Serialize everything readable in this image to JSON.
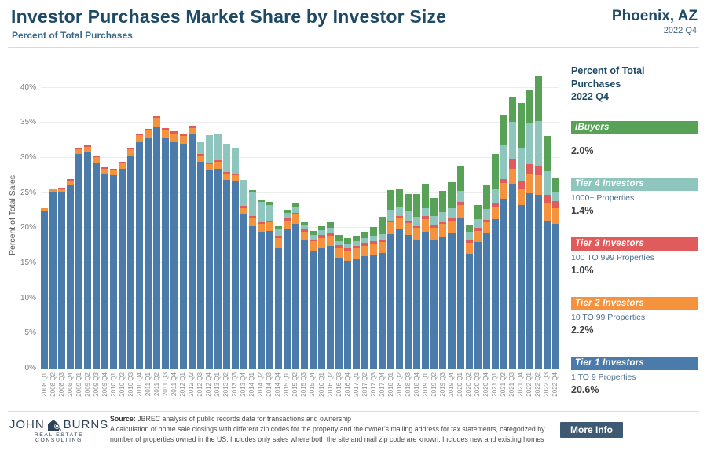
{
  "header": {
    "title": "Investor Purchases Market Share by Investor Size",
    "subtitle": "Percent of Total Purchases",
    "location": "Phoenix, AZ",
    "period": "2022 Q4"
  },
  "chart_data": {
    "type": "bar",
    "stacked": true,
    "ylabel": "Percent of Total Sales",
    "ylim": [
      0,
      43
    ],
    "grid": true,
    "legend_position": "right",
    "ytick_values": [
      0,
      5,
      10,
      15,
      20,
      25,
      30,
      35,
      40
    ],
    "ytick_labels": [
      "0%",
      "5%",
      "10%",
      "15%",
      "20%",
      "25%",
      "30%",
      "35%",
      "40%"
    ],
    "categories": [
      "2008 Q1",
      "2008 Q2",
      "2008 Q3",
      "2008 Q4",
      "2009 Q1",
      "2009 Q2",
      "2009 Q3",
      "2009 Q4",
      "2010 Q1",
      "2010 Q2",
      "2010 Q3",
      "2010 Q4",
      "2011 Q1",
      "2011 Q2",
      "2011 Q3",
      "2011 Q4",
      "2012 Q1",
      "2012 Q2",
      "2012 Q3",
      "2012 Q4",
      "2013 Q1",
      "2013 Q2",
      "2013 Q3",
      "2013 Q4",
      "2014 Q1",
      "2014 Q2",
      "2014 Q3",
      "2014 Q4",
      "2015 Q1",
      "2015 Q2",
      "2015 Q3",
      "2015 Q4",
      "2016 Q1",
      "2016 Q2",
      "2016 Q3",
      "2016 Q4",
      "2017 Q1",
      "2017 Q2",
      "2017 Q3",
      "2017 Q4",
      "2018 Q1",
      "2018 Q2",
      "2018 Q3",
      "2018 Q4",
      "2019 Q1",
      "2019 Q2",
      "2019 Q3",
      "2019 Q4",
      "2020 Q1",
      "2020 Q2",
      "2020 Q3",
      "2020 Q4",
      "2021 Q1",
      "2021 Q2",
      "2021 Q3",
      "2021 Q4",
      "2022 Q1",
      "2022 Q2",
      "2022 Q3",
      "2022 Q4"
    ],
    "series": [
      {
        "name": "Tier 1 Investors",
        "color": "#4b7bab",
        "values": [
          22.5,
          25.1,
          25.1,
          26.1,
          30.6,
          30.9,
          29.3,
          27.7,
          27.5,
          28.4,
          30.3,
          32.2,
          32.8,
          34.4,
          32.9,
          32.3,
          32.0,
          33.4,
          29.5,
          28.2,
          28.5,
          26.9,
          26.7,
          21.9,
          20.4,
          19.5,
          19.6,
          17.3,
          19.8,
          20.6,
          18.2,
          16.7,
          17.2,
          17.5,
          15.8,
          15.3,
          15.6,
          16.0,
          16.2,
          16.5,
          19.2,
          19.8,
          19.0,
          18.3,
          19.5,
          18.4,
          18.8,
          19.3,
          21.4,
          16.3,
          18.0,
          19.3,
          21.3,
          24.2,
          26.3,
          23.3,
          25.0,
          24.8,
          21.0,
          20.6
        ]
      },
      {
        "name": "Tier 2 Investors",
        "color": "#f5923e",
        "values": [
          0.3,
          0.4,
          0.5,
          0.7,
          0.7,
          0.7,
          0.8,
          0.8,
          0.8,
          0.9,
          1.0,
          1.1,
          1.2,
          1.3,
          1.1,
          1.2,
          1.1,
          0.9,
          0.9,
          0.9,
          1.0,
          0.9,
          0.8,
          1.0,
          1.0,
          1.1,
          1.2,
          1.3,
          1.3,
          1.3,
          1.3,
          1.4,
          1.4,
          1.4,
          1.4,
          1.5,
          1.5,
          1.5,
          1.5,
          1.5,
          1.6,
          1.6,
          1.7,
          1.7,
          1.8,
          1.7,
          1.8,
          1.8,
          1.9,
          1.6,
          1.6,
          1.5,
          1.8,
          2.2,
          2.2,
          2.4,
          2.8,
          2.8,
          2.6,
          2.2
        ]
      },
      {
        "name": "Tier 3 Investors",
        "color": "#e05c5c",
        "values": [
          0.0,
          0.0,
          0.2,
          0.2,
          0.2,
          0.2,
          0.2,
          0.2,
          0.2,
          0.2,
          0.2,
          0.2,
          0.2,
          0.3,
          0.3,
          0.3,
          0.3,
          0.3,
          0.2,
          0.2,
          0.2,
          0.2,
          0.2,
          0.3,
          0.3,
          0.3,
          0.3,
          0.3,
          0.3,
          0.3,
          0.3,
          0.3,
          0.4,
          0.4,
          0.4,
          0.4,
          0.4,
          0.4,
          0.4,
          0.3,
          0.3,
          0.3,
          0.4,
          0.4,
          0.4,
          0.4,
          0.4,
          0.4,
          0.5,
          0.4,
          0.4,
          0.4,
          0.5,
          0.6,
          1.3,
          0.9,
          1.3,
          1.3,
          1.1,
          1.0
        ]
      },
      {
        "name": "Tier 4 Investors",
        "color": "#8ec6bd",
        "values": [
          0,
          0,
          0,
          0,
          0,
          0,
          0,
          0,
          0,
          0,
          0,
          0,
          0,
          0,
          0,
          0,
          0.1,
          0.0,
          1.7,
          4.0,
          3.8,
          4.0,
          3.7,
          3.7,
          3.4,
          2.8,
          2.2,
          1.0,
          0.8,
          0.8,
          0.7,
          0.6,
          0.7,
          0.7,
          0.6,
          0.6,
          0.6,
          0.7,
          0.8,
          0.9,
          1.5,
          1.3,
          1.3,
          1.2,
          1.2,
          1.2,
          1.3,
          1.4,
          1.5,
          1.2,
          1.3,
          1.5,
          2.1,
          4.9,
          5.4,
          4.9,
          6.0,
          6.4,
          3.4,
          1.4
        ]
      },
      {
        "name": "iBuyers",
        "color": "#57a257",
        "values": [
          0,
          0,
          0,
          0,
          0,
          0,
          0,
          0,
          0,
          0,
          0,
          0,
          0,
          0,
          0,
          0,
          0,
          0,
          0,
          0,
          0,
          0,
          0,
          0,
          0.3,
          0.3,
          0.4,
          0.4,
          0.4,
          0.5,
          0.5,
          0.6,
          0.7,
          0.8,
          0.8,
          0.8,
          0.8,
          0.9,
          1.3,
          2.4,
          2.8,
          2.7,
          2.5,
          3.3,
          3.4,
          2.6,
          3.0,
          3.6,
          3.6,
          1.0,
          2.0,
          3.4,
          4.9,
          4.3,
          3.6,
          6.4,
          4.5,
          6.4,
          5.1,
          2.0
        ]
      }
    ]
  },
  "legend": {
    "heading_line1": "Percent of Total",
    "heading_line2": "Purchases",
    "heading_line3": "2022 Q4",
    "items": [
      {
        "name": "iBuyers",
        "sublabel": "",
        "value": "2.0%",
        "color": "#57a257"
      },
      {
        "name": "Tier 4 Investors",
        "sublabel": "1000+ Properties",
        "value": "1.4%",
        "color": "#8ec6bd"
      },
      {
        "name": "Tier 3 Investors",
        "sublabel": "100 TO 999 Properties",
        "value": "1.0%",
        "color": "#e05c5c"
      },
      {
        "name": "Tier 2 Investors",
        "sublabel": "10 TO 99 Properties",
        "value": "2.2%",
        "color": "#f5923e"
      },
      {
        "name": "Tier 1 Investors",
        "sublabel": "1 TO 9 Properties",
        "value": "20.6%",
        "color": "#4b7bab"
      }
    ]
  },
  "footer": {
    "logo_line1a": "JOHN",
    "logo_line1b": "BURNS",
    "logo_line2": "REAL ESTATE CONSULTING",
    "source_label": "Source:",
    "source_text": " JBREC analysis of public records data for transactions and ownership",
    "note_line1": "A calculation of home sale closings with different zip codes for the property and the owner’s mailing address for tax statements, categorized by",
    "note_line2": "number of properties owned in the US. Includes only sales where both the site and mail zip code are known. Includes new and existing homes",
    "more_info_label": "More Info"
  }
}
